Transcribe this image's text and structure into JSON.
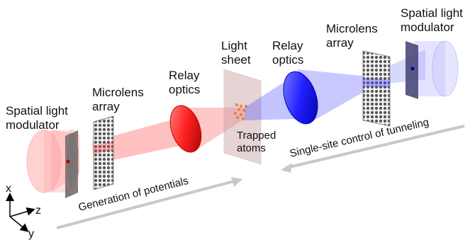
{
  "labels": {
    "slm_left_1": "Spatial light",
    "slm_left_2": "modulator",
    "mla_left_1": "Microlens",
    "mla_left_2": "array",
    "relay_left_1": "Relay",
    "relay_left_2": "optics",
    "sheet_1": "Light",
    "sheet_2": "sheet",
    "relay_right_1": "Relay",
    "relay_right_2": "optics",
    "mla_right_1": "Microlens",
    "mla_right_2": "array",
    "slm_right_1": "Spatial light",
    "slm_right_2": "modulator",
    "atoms_1": "Trapped",
    "atoms_2": "atoms",
    "gen_arrow": "Generation of potentials",
    "tunnel_arrow": "Single-site control of tunneling"
  },
  "axes": {
    "x": "x",
    "y": "y",
    "z": "z"
  },
  "colors": {
    "red_beam": "#ff3b3b",
    "blue_beam": "#3a3aff",
    "sheet": "#c9a0a0",
    "arrow": "#c8c8c8",
    "atoms": "#e8803a"
  }
}
